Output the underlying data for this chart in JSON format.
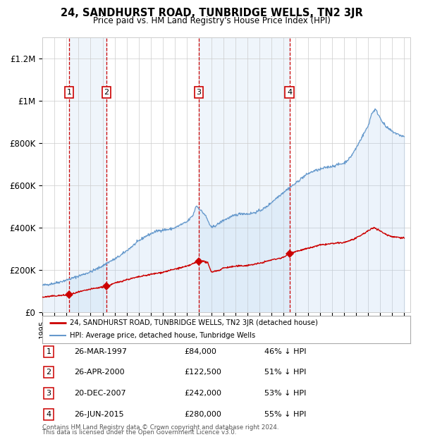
{
  "title": "24, SANDHURST ROAD, TUNBRIDGE WELLS, TN2 3JR",
  "subtitle": "Price paid vs. HM Land Registry's House Price Index (HPI)",
  "transactions": [
    {
      "num": 1,
      "date": "26-MAR-1997",
      "price": 84000,
      "pct": "46%",
      "year_x": 1997.23
    },
    {
      "num": 2,
      "date": "26-APR-2000",
      "price": 122500,
      "pct": "51%",
      "year_x": 2000.32
    },
    {
      "num": 3,
      "date": "20-DEC-2007",
      "price": 242000,
      "pct": "53%",
      "year_x": 2007.97
    },
    {
      "num": 4,
      "date": "26-JUN-2015",
      "price": 280000,
      "pct": "55%",
      "year_x": 2015.49
    }
  ],
  "legend_line1": "24, SANDHURST ROAD, TUNBRIDGE WELLS, TN2 3JR (detached house)",
  "legend_line2": "HPI: Average price, detached house, Tunbridge Wells",
  "footer1": "Contains HM Land Registry data © Crown copyright and database right 2024.",
  "footer2": "This data is licensed under the Open Government Licence v3.0.",
  "red_color": "#cc0000",
  "blue_color": "#6699cc",
  "fill_color": "#ddeeff",
  "background_color": "#ffffff",
  "grid_color": "#cccccc",
  "dashed_line_color": "#cc0000",
  "xlim": [
    1995.0,
    2025.5
  ],
  "ylim": [
    0,
    1300000
  ],
  "yticks": [
    0,
    200000,
    400000,
    600000,
    800000,
    1000000,
    1200000
  ],
  "ytick_labels": [
    "£0",
    "£200K",
    "£400K",
    "£600K",
    "£800K",
    "£1M",
    "£1.2M"
  ],
  "xticks": [
    1995,
    1996,
    1997,
    1998,
    1999,
    2000,
    2001,
    2002,
    2003,
    2004,
    2005,
    2006,
    2007,
    2008,
    2009,
    2010,
    2011,
    2012,
    2013,
    2014,
    2015,
    2016,
    2017,
    2018,
    2019,
    2020,
    2021,
    2022,
    2023,
    2024,
    2025
  ],
  "hpi_anchors": [
    [
      1995.0,
      128000
    ],
    [
      1995.5,
      133000
    ],
    [
      1996.0,
      138000
    ],
    [
      1996.5,
      145000
    ],
    [
      1997.0,
      153000
    ],
    [
      1997.5,
      162000
    ],
    [
      1998.0,
      172000
    ],
    [
      1998.5,
      182000
    ],
    [
      1999.0,
      192000
    ],
    [
      1999.5,
      205000
    ],
    [
      2000.0,
      220000
    ],
    [
      2000.5,
      238000
    ],
    [
      2001.0,
      252000
    ],
    [
      2001.5,
      270000
    ],
    [
      2002.0,
      292000
    ],
    [
      2002.5,
      315000
    ],
    [
      2003.0,
      338000
    ],
    [
      2003.5,
      358000
    ],
    [
      2004.0,
      372000
    ],
    [
      2004.5,
      385000
    ],
    [
      2005.0,
      390000
    ],
    [
      2005.5,
      392000
    ],
    [
      2006.0,
      400000
    ],
    [
      2006.5,
      415000
    ],
    [
      2007.0,
      428000
    ],
    [
      2007.5,
      460000
    ],
    [
      2007.75,
      505000
    ],
    [
      2008.0,
      490000
    ],
    [
      2008.5,
      460000
    ],
    [
      2009.0,
      400000
    ],
    [
      2009.5,
      415000
    ],
    [
      2010.0,
      435000
    ],
    [
      2010.5,
      448000
    ],
    [
      2011.0,
      460000
    ],
    [
      2011.5,
      468000
    ],
    [
      2012.0,
      465000
    ],
    [
      2012.5,
      470000
    ],
    [
      2013.0,
      480000
    ],
    [
      2013.5,
      495000
    ],
    [
      2014.0,
      520000
    ],
    [
      2014.5,
      545000
    ],
    [
      2015.0,
      568000
    ],
    [
      2015.5,
      590000
    ],
    [
      2016.0,
      610000
    ],
    [
      2016.5,
      635000
    ],
    [
      2017.0,
      655000
    ],
    [
      2017.5,
      668000
    ],
    [
      2018.0,
      675000
    ],
    [
      2018.5,
      685000
    ],
    [
      2019.0,
      690000
    ],
    [
      2019.5,
      698000
    ],
    [
      2020.0,
      705000
    ],
    [
      2020.5,
      730000
    ],
    [
      2021.0,
      775000
    ],
    [
      2021.5,
      830000
    ],
    [
      2022.0,
      880000
    ],
    [
      2022.3,
      940000
    ],
    [
      2022.6,
      960000
    ],
    [
      2022.9,
      930000
    ],
    [
      2023.2,
      900000
    ],
    [
      2023.5,
      875000
    ],
    [
      2024.0,
      855000
    ],
    [
      2024.5,
      840000
    ],
    [
      2025.0,
      830000
    ]
  ],
  "red_anchors": [
    [
      1995.0,
      72000
    ],
    [
      1996.0,
      78000
    ],
    [
      1997.0,
      82000
    ],
    [
      1997.23,
      84000
    ],
    [
      1998.0,
      96000
    ],
    [
      1999.0,
      110000
    ],
    [
      2000.0,
      120000
    ],
    [
      2000.32,
      122500
    ],
    [
      2001.0,
      138000
    ],
    [
      2002.0,
      155000
    ],
    [
      2003.0,
      168000
    ],
    [
      2004.0,
      180000
    ],
    [
      2005.0,
      190000
    ],
    [
      2006.0,
      205000
    ],
    [
      2007.0,
      218000
    ],
    [
      2007.97,
      242000
    ],
    [
      2008.3,
      242000
    ],
    [
      2008.7,
      235000
    ],
    [
      2009.0,
      192000
    ],
    [
      2009.3,
      195000
    ],
    [
      2009.7,
      200000
    ],
    [
      2010.0,
      210000
    ],
    [
      2011.0,
      218000
    ],
    [
      2012.0,
      222000
    ],
    [
      2013.0,
      232000
    ],
    [
      2014.0,
      248000
    ],
    [
      2015.0,
      260000
    ],
    [
      2015.49,
      280000
    ],
    [
      2016.0,
      288000
    ],
    [
      2017.0,
      302000
    ],
    [
      2018.0,
      318000
    ],
    [
      2019.0,
      325000
    ],
    [
      2020.0,
      330000
    ],
    [
      2021.0,
      350000
    ],
    [
      2022.0,
      385000
    ],
    [
      2022.5,
      402000
    ],
    [
      2023.0,
      385000
    ],
    [
      2023.5,
      368000
    ],
    [
      2024.0,
      358000
    ],
    [
      2025.0,
      352000
    ]
  ]
}
